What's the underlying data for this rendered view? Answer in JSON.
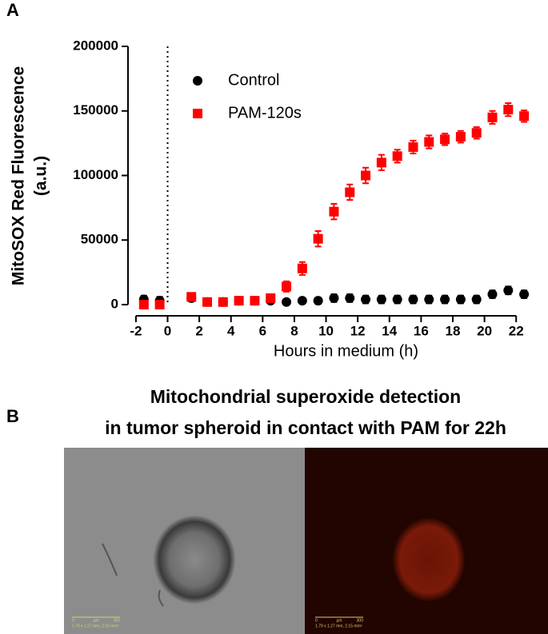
{
  "panel_labels": [
    "A",
    "B"
  ],
  "chart_data": {
    "type": "scatter",
    "x_label": "Hours in medium (h)",
    "y_label": [
      "MitoSOX Red Fluorescence",
      "(a.u.)"
    ],
    "xlim": [
      -2.5,
      23
    ],
    "ylim": [
      0,
      200000
    ],
    "xticks": [
      -2,
      0,
      2,
      4,
      6,
      8,
      10,
      12,
      14,
      16,
      18,
      20,
      22
    ],
    "yticks": [
      0,
      50000,
      100000,
      150000,
      200000
    ],
    "reference_line_x": 0,
    "legend": "upper-left",
    "series": [
      {
        "name": "Control",
        "color": "#000000",
        "marker": "circle",
        "x": [
          -1.5,
          -0.5,
          1.5,
          2.5,
          3.5,
          4.5,
          5.5,
          6.5,
          7.5,
          8.5,
          9.5,
          10.5,
          11.5,
          12.5,
          13.5,
          14.5,
          15.5,
          16.5,
          17.5,
          18.5,
          19.5,
          20.5,
          21.5,
          22.5
        ],
        "values": [
          4000,
          3000,
          5000,
          2000,
          2000,
          3000,
          3000,
          3000,
          2000,
          3000,
          3000,
          5000,
          5000,
          4000,
          4000,
          4000,
          4000,
          4000,
          4000,
          4000,
          4000,
          8000,
          11000,
          8000
        ],
        "errors": [
          3000,
          3000,
          2500,
          1500,
          1500,
          1500,
          1500,
          1500,
          1500,
          1500,
          2500,
          3000,
          3000,
          3000,
          3000,
          3000,
          3000,
          3000,
          3000,
          3000,
          3000,
          3000,
          3000,
          3000
        ]
      },
      {
        "name": "PAM-120s",
        "color": "#ff0000",
        "marker": "square",
        "x": [
          -1.5,
          -0.5,
          1.5,
          2.5,
          3.5,
          4.5,
          5.5,
          6.5,
          7.5,
          8.5,
          9.5,
          10.5,
          11.5,
          12.5,
          13.5,
          14.5,
          15.5,
          16.5,
          17.5,
          18.5,
          19.5,
          20.5,
          21.5,
          22.5
        ],
        "values": [
          0,
          0,
          6000,
          2000,
          2000,
          3000,
          3000,
          5000,
          14000,
          28000,
          51000,
          72000,
          87000,
          100000,
          110000,
          115000,
          122000,
          126000,
          128000,
          130000,
          133000,
          145000,
          151000,
          146000
        ],
        "errors": [
          2500,
          2500,
          3000,
          2000,
          2000,
          2000,
          2000,
          2500,
          4000,
          5000,
          6000,
          6000,
          6000,
          6000,
          6000,
          5000,
          5000,
          5000,
          4500,
          4500,
          4500,
          5000,
          5000,
          4500
        ]
      }
    ]
  },
  "panel_b": {
    "title": [
      "Mitochondrial superoxide detection",
      "in tumor spheroid in contact with PAM for 22h"
    ],
    "images": [
      {
        "scale_ticks": [
          "0",
          "µm",
          "300"
        ],
        "scale_info": "1.79 x 1.27 mm, 2.15 mm²"
      },
      {
        "scale_ticks": [
          "0",
          "µm",
          "300"
        ],
        "scale_info": "1.79 x 1.27 mm, 2.15 mm²"
      }
    ]
  }
}
